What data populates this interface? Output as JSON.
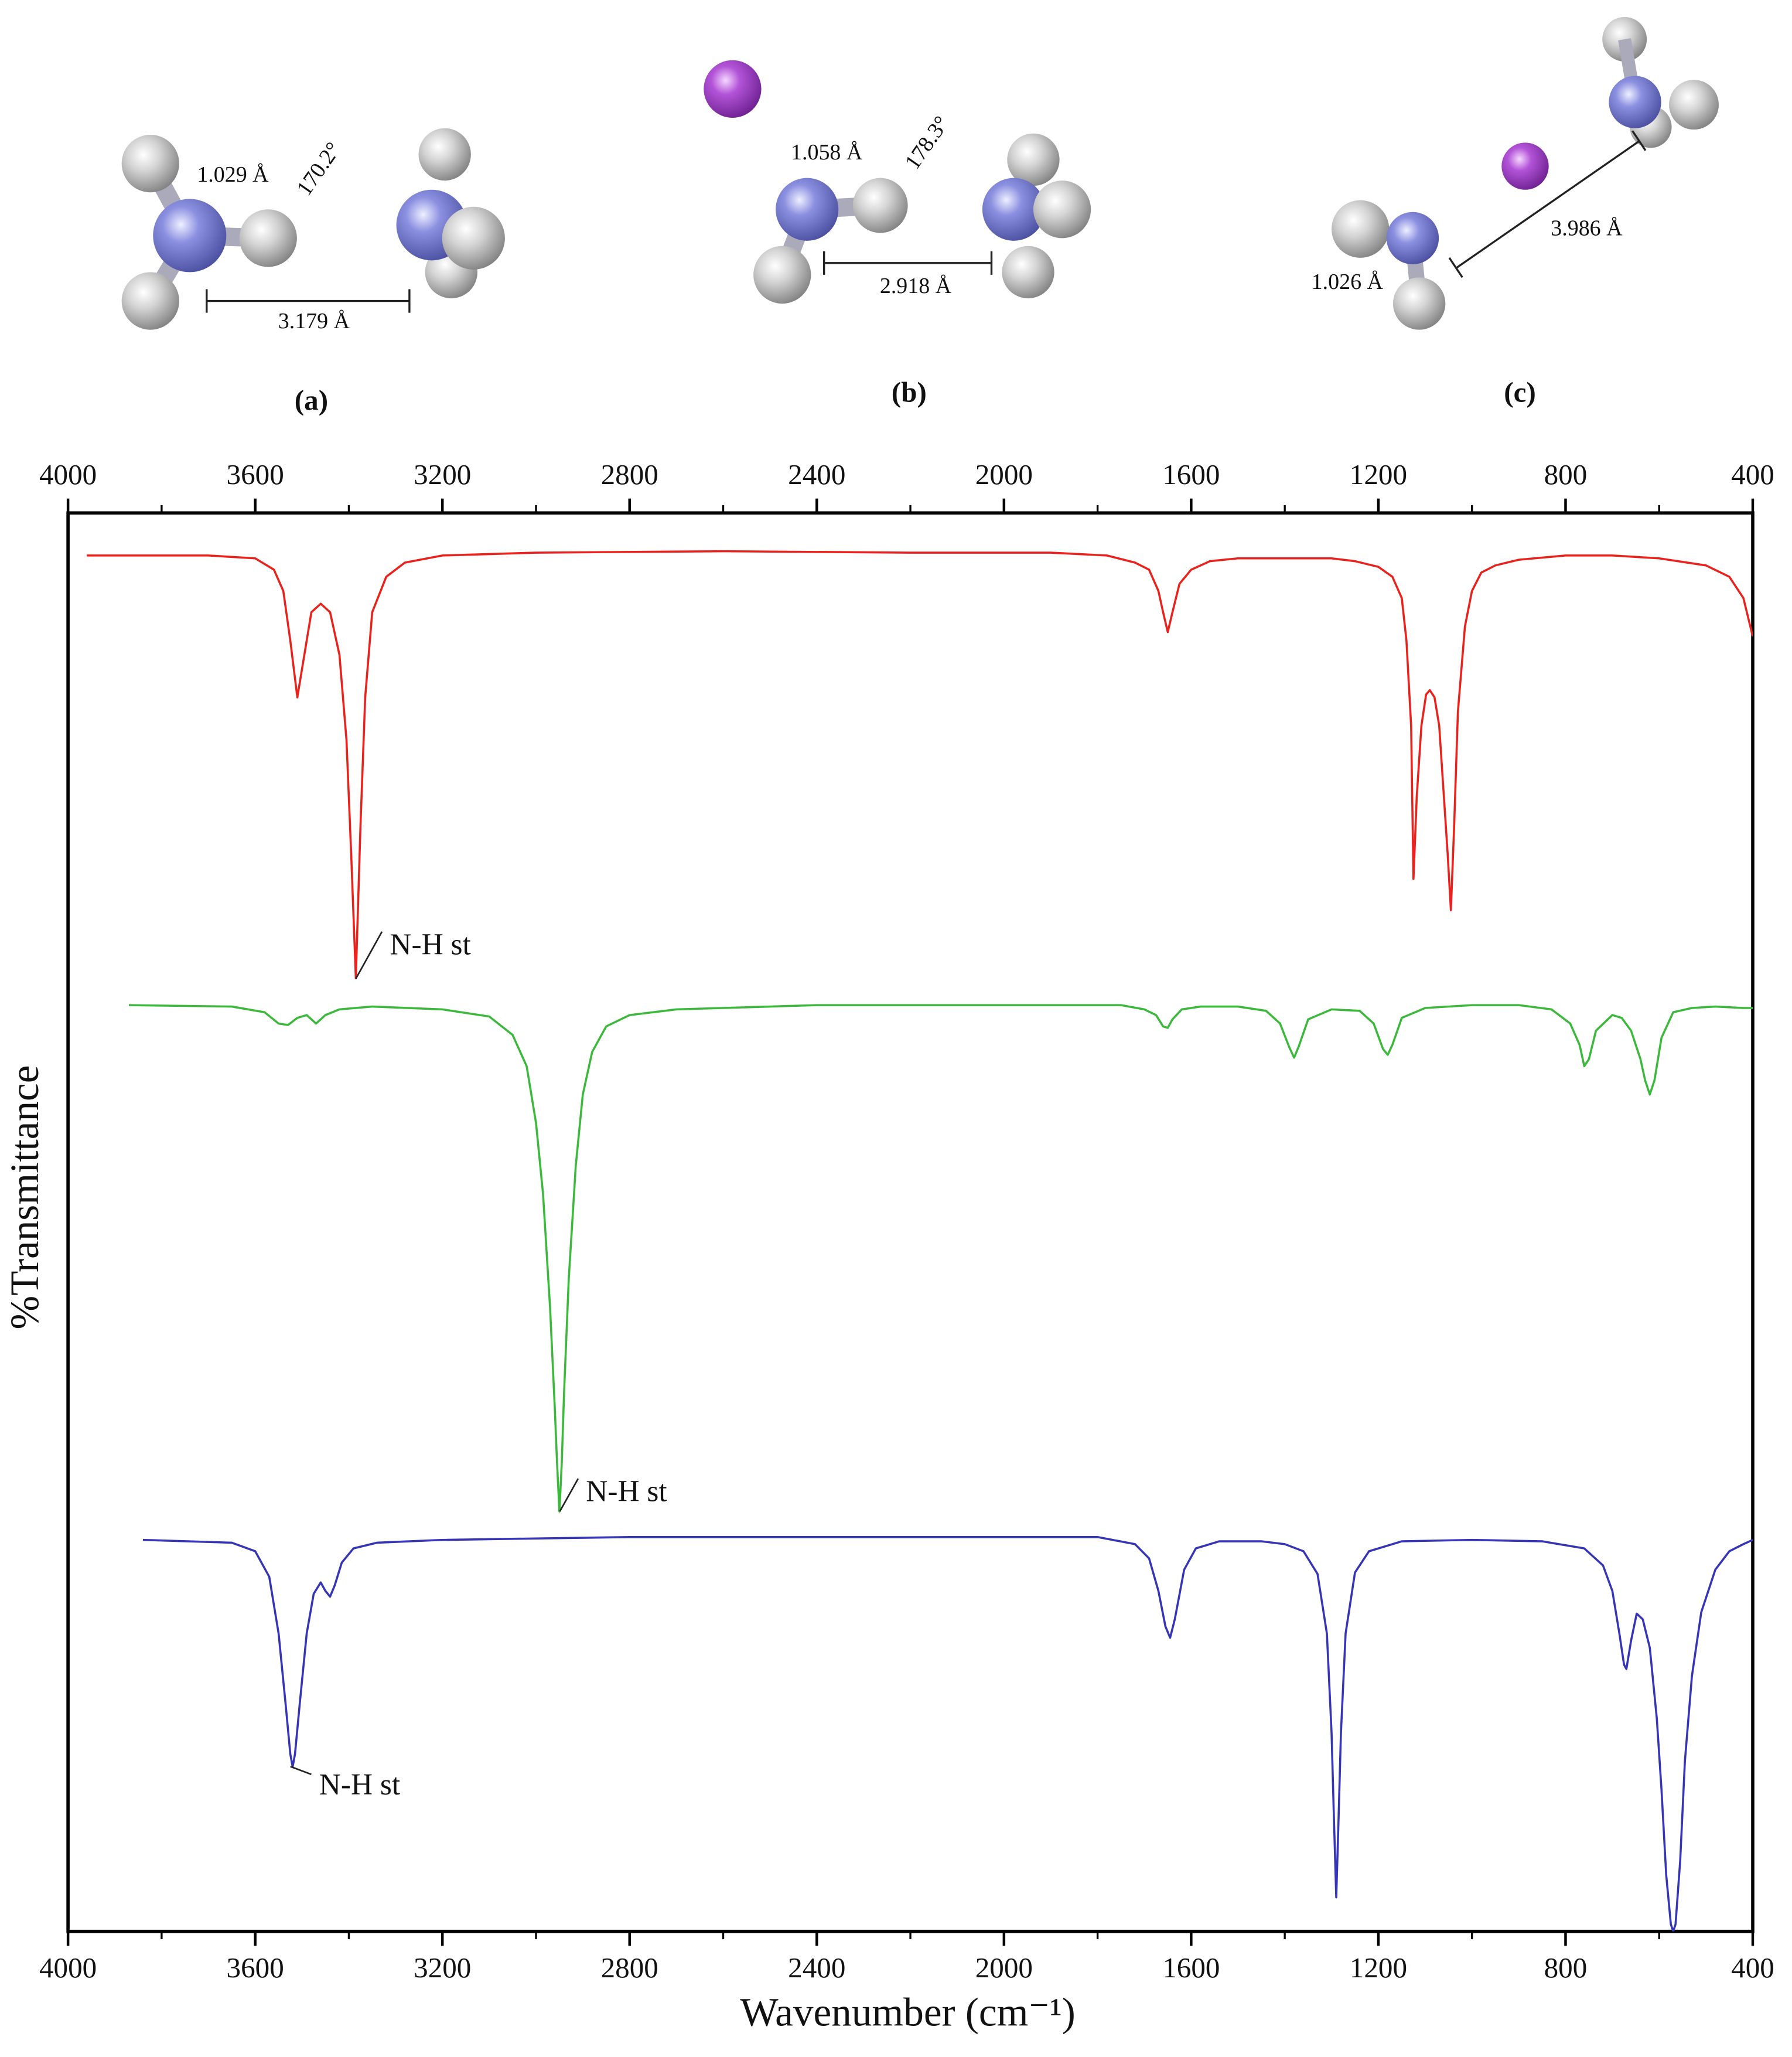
{
  "structures": [
    {
      "label": "(a)",
      "bond_length": "1.029 Å",
      "angle": "170.2°",
      "distance": "3.179 Å"
    },
    {
      "label": "(b)",
      "bond_length": "1.058 Å",
      "angle": "178.3°",
      "distance": "2.918 Å"
    },
    {
      "label": "(c)",
      "bond_length": "1.026 Å",
      "distance": "3.986 Å"
    }
  ],
  "chart_data": {
    "type": "line",
    "x_label": "Wavenumber (cm⁻¹)",
    "y_label": "%Transmittance",
    "xlim": [
      4000,
      400
    ],
    "xticks": [
      4000,
      3600,
      3200,
      2800,
      2400,
      2000,
      1600,
      1200,
      800,
      400
    ],
    "xminorticks": [
      3800,
      3400,
      3000,
      2600,
      2200,
      1800,
      1400,
      1000,
      600
    ],
    "ylim": [
      0,
      100
    ],
    "annotations": [
      "N-H st",
      "N-H st",
      "N-H st"
    ],
    "series": [
      {
        "color": "#e8221c",
        "x": [
          3960,
          3700,
          3600,
          3560,
          3540,
          3525,
          3510,
          3495,
          3480,
          3460,
          3440,
          3420,
          3405,
          3395,
          3385,
          3375,
          3365,
          3350,
          3320,
          3280,
          3200,
          3000,
          2600,
          2200,
          1900,
          1780,
          1720,
          1690,
          1670,
          1660,
          1650,
          1640,
          1625,
          1600,
          1560,
          1500,
          1400,
          1300,
          1250,
          1200,
          1170,
          1150,
          1140,
          1130,
          1125,
          1118,
          1108,
          1098,
          1090,
          1080,
          1070,
          1060,
          1052,
          1045,
          1038,
          1030,
          1015,
          1000,
          980,
          950,
          900,
          800,
          700,
          600,
          500,
          450,
          420,
          400
        ],
        "values": [
          97,
          97,
          96.8,
          96,
          94.5,
          91,
          87,
          90,
          93,
          93.6,
          93,
          90,
          84,
          76,
          67.2,
          78,
          87,
          93,
          95.5,
          96.5,
          97,
          97.2,
          97.3,
          97.2,
          97.2,
          97,
          96.5,
          96,
          94.5,
          93,
          91.6,
          93,
          95,
          96,
          96.6,
          96.8,
          96.8,
          96.8,
          96.6,
          96.2,
          95.5,
          94,
          91,
          85,
          74.2,
          80,
          85,
          87.2,
          87.5,
          87,
          85,
          80,
          76,
          72,
          78,
          86,
          92,
          94.5,
          95.8,
          96.3,
          96.7,
          97,
          97,
          96.8,
          96.3,
          95.5,
          94,
          91.3
        ]
      },
      {
        "color": "#3cb83c",
        "x": [
          3870,
          3650,
          3580,
          3550,
          3530,
          3510,
          3490,
          3470,
          3450,
          3420,
          3350,
          3200,
          3100,
          3050,
          3020,
          3000,
          2985,
          2970,
          2960,
          2955,
          2950,
          2945,
          2940,
          2930,
          2915,
          2900,
          2880,
          2850,
          2800,
          2700,
          2400,
          2000,
          1750,
          1700,
          1675,
          1660,
          1650,
          1640,
          1620,
          1580,
          1500,
          1440,
          1410,
          1390,
          1380,
          1370,
          1350,
          1300,
          1240,
          1210,
          1190,
          1180,
          1170,
          1150,
          1100,
          1000,
          900,
          830,
          790,
          770,
          760,
          750,
          735,
          700,
          680,
          660,
          640,
          630,
          620,
          610,
          595,
          570,
          530,
          480,
          420,
          400
        ],
        "values": [
          65.3,
          65.2,
          64.8,
          64,
          63.9,
          64.4,
          64.6,
          64,
          64.6,
          65,
          65.2,
          65,
          64.5,
          63.2,
          61,
          57,
          52,
          44,
          37,
          33,
          29.6,
          33,
          38,
          46,
          54,
          59,
          62,
          63.8,
          64.6,
          65,
          65.3,
          65.3,
          65.3,
          65,
          64.6,
          63.8,
          63.7,
          64.3,
          65,
          65.2,
          65.2,
          64.9,
          64,
          62.3,
          61.6,
          62.4,
          64.3,
          65,
          64.9,
          64,
          62.2,
          61.8,
          62.5,
          64.4,
          65.1,
          65.3,
          65.3,
          65,
          64,
          62.5,
          61,
          61.5,
          63.5,
          64.6,
          64.4,
          63.5,
          61.5,
          60,
          59,
          60,
          63,
          64.8,
          65.1,
          65.2,
          65.1,
          65.1
        ]
      },
      {
        "color": "#3535b5",
        "x": [
          3840,
          3650,
          3600,
          3570,
          3550,
          3535,
          3525,
          3520,
          3515,
          3505,
          3490,
          3475,
          3460,
          3450,
          3440,
          3430,
          3415,
          3390,
          3340,
          3200,
          2800,
          2200,
          1800,
          1720,
          1690,
          1670,
          1655,
          1645,
          1635,
          1615,
          1590,
          1540,
          1450,
          1400,
          1360,
          1330,
          1310,
          1300,
          1295,
          1290,
          1285,
          1280,
          1270,
          1250,
          1220,
          1150,
          1000,
          850,
          760,
          720,
          700,
          685,
          675,
          670,
          660,
          648,
          635,
          620,
          605,
          595,
          585,
          575,
          570,
          565,
          555,
          545,
          530,
          510,
          480,
          450,
          420,
          400
        ],
        "values": [
          27.6,
          27.4,
          26.8,
          25,
          21,
          16,
          12.5,
          11.6,
          12.5,
          16,
          21,
          23.8,
          24.6,
          24,
          23.6,
          24.4,
          26,
          27,
          27.4,
          27.6,
          27.8,
          27.8,
          27.8,
          27.3,
          26.3,
          24,
          21.5,
          20.7,
          22,
          25.5,
          27,
          27.5,
          27.5,
          27.3,
          26.8,
          25.2,
          21,
          14,
          8,
          2.4,
          8,
          14,
          21,
          25.3,
          26.8,
          27.5,
          27.6,
          27.5,
          27,
          25.8,
          24,
          21,
          18.8,
          18.5,
          20.5,
          22.4,
          22,
          20,
          15,
          10,
          4,
          0.5,
          0,
          0.5,
          5,
          12,
          18,
          22.5,
          25.5,
          26.8,
          27.3,
          27.6
        ]
      }
    ]
  }
}
